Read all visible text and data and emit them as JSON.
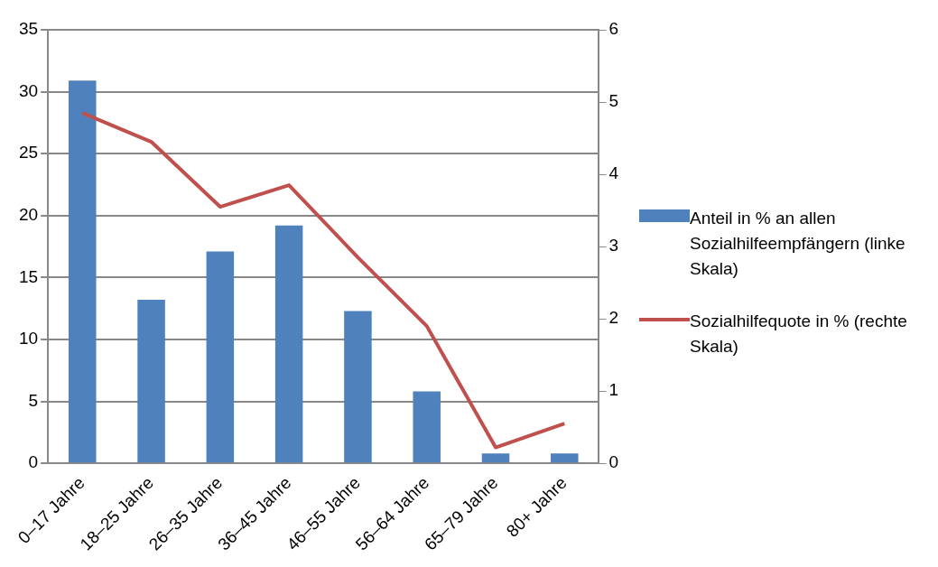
{
  "chart_data": {
    "type": "bar",
    "categories": [
      "0–17 Jahre",
      "18–25 Jahre",
      "26–35 Jahre",
      "36–45 Jahre",
      "46–55 Jahre",
      "56–64 Jahre",
      "65–79 Jahre",
      "80+ Jahre"
    ],
    "series": [
      {
        "name": "Anteil in % an allen Sozialhilfeempfängern (linke Skala)",
        "color": "#4f81bd",
        "values": [
          30.9,
          13.2,
          17.1,
          19.2,
          12.3,
          5.8,
          0.8,
          0.8
        ]
      },
      {
        "name": "Sozialhilfequote in % (rechte Skala)",
        "type": "line",
        "axis": "y2",
        "color": "#c0504d",
        "values": [
          4.85,
          4.45,
          3.55,
          3.85,
          2.85,
          1.9,
          0.22,
          0.55
        ]
      }
    ],
    "ylim": [
      0,
      35
    ],
    "yticks": [
      0,
      5,
      10,
      15,
      20,
      25,
      30,
      35
    ],
    "y2lim": [
      0,
      6
    ],
    "y2ticks": [
      0,
      1,
      2,
      3,
      4,
      5,
      6
    ],
    "grid": "y",
    "legend": "right",
    "marker": "none"
  }
}
